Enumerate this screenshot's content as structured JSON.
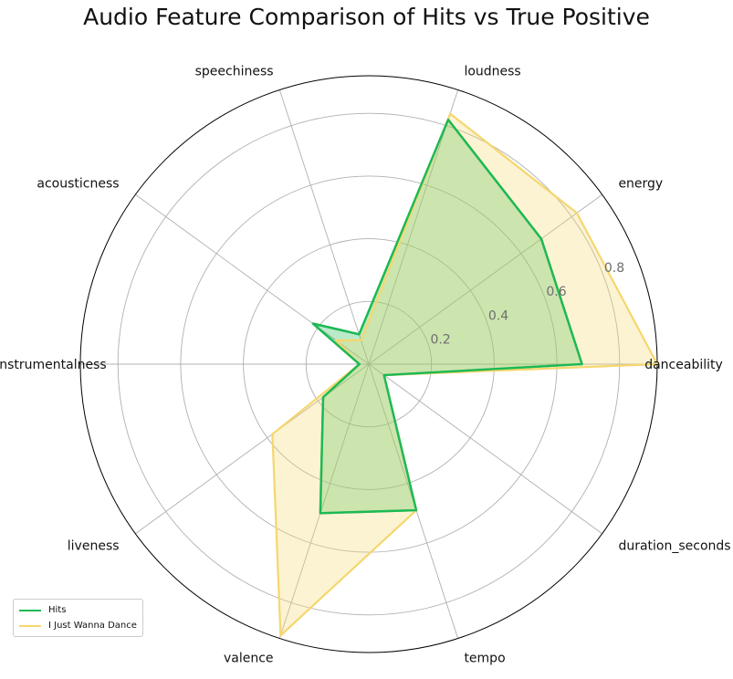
{
  "chart_data": {
    "type": "radar",
    "title": "Audio Feature Comparison of Hits vs True Positive",
    "axes": [
      "danceability",
      "energy",
      "loudness",
      "speechiness",
      "acousticness",
      "instrumentalness",
      "liveness",
      "valence",
      "tempo",
      "duration_seconds"
    ],
    "radial_ticks": [
      0.2,
      0.4,
      0.6,
      0.8
    ],
    "rlim": [
      0,
      0.92
    ],
    "grid": true,
    "legend_position": "lower-left",
    "series": [
      {
        "name": "Hits",
        "color": "#1db954",
        "values": [
          0.68,
          0.68,
          0.82,
          0.1,
          0.22,
          0.03,
          0.18,
          0.5,
          0.49,
          0.06
        ]
      },
      {
        "name": "I Just Wanna Dance",
        "color": "#f5d76e",
        "values": [
          0.92,
          0.82,
          0.84,
          0.08,
          0.13,
          0.03,
          0.38,
          0.91,
          0.49,
          0.06
        ]
      }
    ]
  }
}
